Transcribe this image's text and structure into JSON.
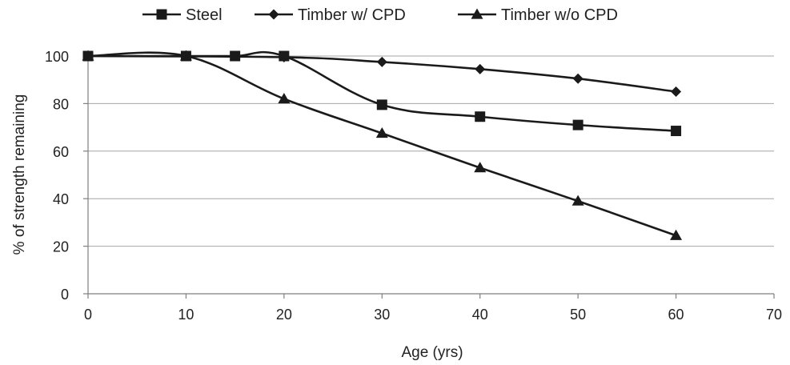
{
  "chart_data": {
    "type": "line",
    "xlabel": "Age (yrs)",
    "ylabel": "% of strength remaining",
    "xlim": [
      0,
      70
    ],
    "ylim": [
      0,
      100
    ],
    "xticks": [
      0,
      10,
      20,
      30,
      40,
      50,
      60,
      70
    ],
    "yticks": [
      0,
      20,
      40,
      60,
      80,
      100
    ],
    "grid": "horizontal",
    "legend_position": "top",
    "series": [
      {
        "name": "Steel",
        "marker": "square",
        "color": "#1a1a1a",
        "x": [
          0,
          10,
          15,
          20,
          30,
          40,
          50,
          60
        ],
        "y": [
          100,
          100,
          100,
          100,
          79.5,
          74.5,
          71,
          68.5
        ]
      },
      {
        "name": "Timber w/ CPD",
        "marker": "diamond",
        "color": "#1a1a1a",
        "x": [
          0,
          20,
          30,
          40,
          50,
          60
        ],
        "y": [
          100,
          99.5,
          97.5,
          94.5,
          90.5,
          85
        ]
      },
      {
        "name": "Timber w/o CPD",
        "marker": "triangle",
        "color": "#1a1a1a",
        "x": [
          0,
          10,
          20,
          30,
          40,
          50,
          60
        ],
        "y": [
          100,
          100,
          82,
          67.5,
          53,
          39,
          24.5
        ]
      }
    ]
  }
}
